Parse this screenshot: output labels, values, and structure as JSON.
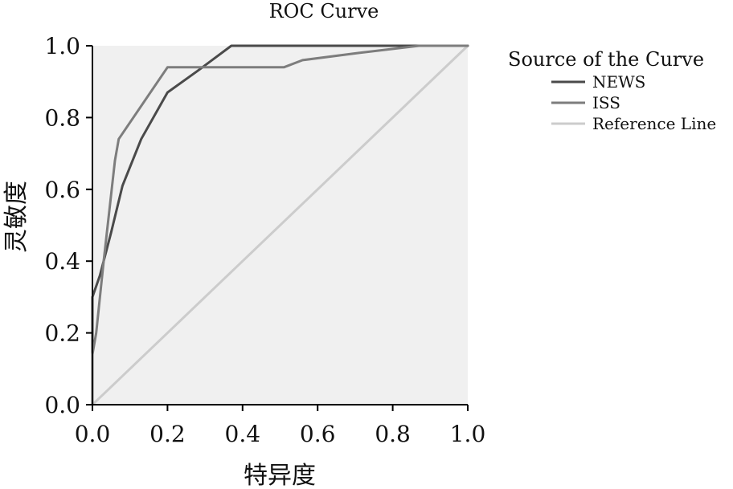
{
  "chart_data": {
    "type": "line",
    "title": "ROC Curve",
    "xlabel": "特异度",
    "ylabel": "灵敏度",
    "xlim": [
      0,
      1
    ],
    "ylim": [
      0,
      1
    ],
    "xticks": [
      "0.0",
      "0.2",
      "0.4",
      "0.6",
      "0.8",
      "1.0"
    ],
    "yticks": [
      "0.0",
      "0.2",
      "0.4",
      "0.6",
      "0.8",
      "1.0"
    ],
    "grid": false,
    "legend": {
      "title": "Source of the Curve",
      "position": "right"
    },
    "series": [
      {
        "name": "NEWS",
        "color": "#4a4a4a",
        "points": [
          [
            0,
            0
          ],
          [
            0,
            0.3
          ],
          [
            0.02,
            0.36
          ],
          [
            0.05,
            0.48
          ],
          [
            0.08,
            0.61
          ],
          [
            0.13,
            0.74
          ],
          [
            0.2,
            0.87
          ],
          [
            0.28,
            0.93
          ],
          [
            0.37,
            1.0
          ],
          [
            1.0,
            1.0
          ]
        ]
      },
      {
        "name": "ISS",
        "color": "#7d7d7d",
        "points": [
          [
            0,
            0
          ],
          [
            0,
            0.14
          ],
          [
            0.01,
            0.2
          ],
          [
            0.03,
            0.4
          ],
          [
            0.06,
            0.68
          ],
          [
            0.07,
            0.74
          ],
          [
            0.2,
            0.94
          ],
          [
            0.51,
            0.94
          ],
          [
            0.56,
            0.96
          ],
          [
            0.71,
            0.98
          ],
          [
            0.87,
            1.0
          ],
          [
            1.0,
            1.0
          ]
        ]
      },
      {
        "name": "Reference Line",
        "color": "#cccccc",
        "points": [
          [
            0,
            0
          ],
          [
            1,
            1
          ]
        ]
      }
    ]
  }
}
